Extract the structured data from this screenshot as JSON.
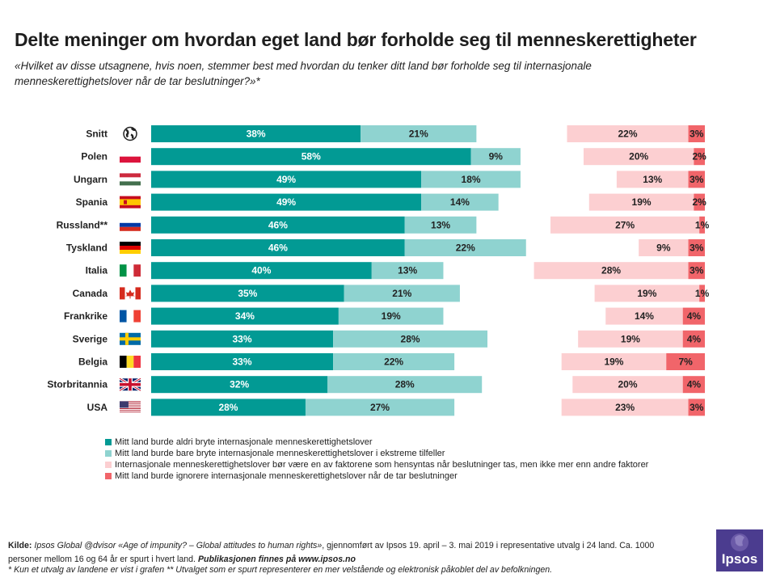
{
  "title": "Delte meninger om hvordan eget land bør forholde seg til menneskerettigheter",
  "subtitle": "«Hvilket av disse utsagnene, hvis noen, stemmer best med hvordan du tenker ditt land bør forholde seg til internasjonale menneskerettighetslover når de tar beslutninger?»*",
  "chart_data": {
    "type": "bar",
    "orientation": "horizontal-stacked",
    "categories": [
      "Snitt",
      "Polen",
      "Ungarn",
      "Spania",
      "Russland**",
      "Tyskland",
      "Italia",
      "Canada",
      "Frankrike",
      "Sverige",
      "Belgia",
      "Storbritannia",
      "USA"
    ],
    "series": [
      {
        "name": "Mitt land burde aldri bryte internasjonale menneskerettighetslover",
        "color": "#029a94",
        "values": [
          38,
          58,
          49,
          49,
          46,
          46,
          40,
          35,
          34,
          33,
          33,
          32,
          28
        ]
      },
      {
        "name": "Mitt land burde bare bryte internasjonale menneskerettighetslover i ekstreme tilfeller",
        "color": "#8fd3d0",
        "values": [
          21,
          9,
          18,
          14,
          13,
          22,
          13,
          21,
          19,
          28,
          22,
          28,
          27
        ]
      },
      {
        "name": "Internasjonale menneskerettighetslover bør være en av faktorene som hensyntas når beslutninger tas, men ikke mer enn andre faktorer",
        "color": "#fccfd1",
        "values": [
          22,
          20,
          13,
          19,
          27,
          9,
          28,
          19,
          14,
          19,
          19,
          20,
          23
        ]
      },
      {
        "name": "Mitt land burde ignorere internasjonale menneskerettighetslover når de tar beslutninger",
        "color": "#f1656a",
        "values": [
          3,
          2,
          3,
          2,
          1,
          3,
          3,
          1,
          4,
          4,
          7,
          4,
          3
        ]
      }
    ],
    "value_suffix": "%",
    "xlim": [
      0,
      100
    ]
  },
  "footer": {
    "source_label": "Kilde:",
    "source_italic": "Ipsos Global @dvisor «Age of impunity? – Global attitudes to human rights»",
    "source_text": ", gjennomført av Ipsos 19. april – 3. mai 2019 i representative utvalg i 24 land. Ca. 1000 personer mellom 16 og 64 år er spurt i hvert land. ",
    "publication": "Publikasjonen finnes på www.ipsos.no",
    "footnote": "* Kun et utvalg av landene er vist i grafen ** Utvalget som er spurt representerer en mer velstående og elektronisk påkoblet del av befolkningen."
  },
  "logo": {
    "text": "Ipsos",
    "color": "#4b3c8f"
  }
}
